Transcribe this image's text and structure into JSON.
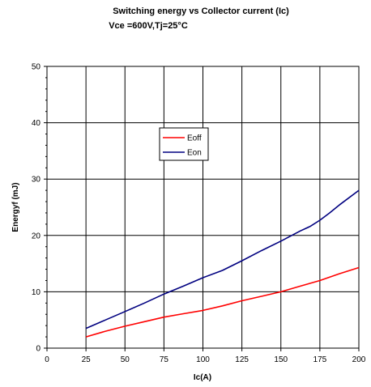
{
  "chart_data": {
    "type": "line",
    "title": "Switching energy vs Collector current (Ic)",
    "subtitle": "Vce =600V,Tj=25°C",
    "xlabel": "Ic(A)",
    "ylabel": "Energyf (mJ)",
    "xlim": [
      0,
      200
    ],
    "ylim": [
      0,
      50
    ],
    "xticks": [
      0,
      25,
      50,
      75,
      100,
      125,
      150,
      175,
      200
    ],
    "yticks": [
      0,
      10,
      20,
      30,
      40,
      50
    ],
    "grid": true,
    "legend_position": "inside-center",
    "series": [
      {
        "name": "Eoff",
        "color": "#ff0000",
        "x": [
          25,
          37.5,
          50,
          62.5,
          75,
          87.5,
          100,
          112.5,
          125,
          137.5,
          150,
          162.5,
          175,
          187.5,
          200
        ],
        "y": [
          2.0,
          3.0,
          3.9,
          4.7,
          5.5,
          6.1,
          6.7,
          7.5,
          8.4,
          9.2,
          10.0,
          11.0,
          12.0,
          13.2,
          14.3
        ]
      },
      {
        "name": "Eon",
        "color": "#000080",
        "x": [
          25,
          37.5,
          50,
          62.5,
          75,
          87.5,
          100,
          112.5,
          125,
          137.5,
          150,
          162.5,
          168.75,
          175,
          181.25,
          187.5,
          200
        ],
        "y": [
          3.5,
          5.0,
          6.5,
          8.0,
          9.6,
          11.0,
          12.5,
          13.8,
          15.5,
          17.3,
          19.0,
          20.8,
          21.6,
          22.7,
          24.0,
          25.4,
          28.0
        ]
      }
    ]
  }
}
